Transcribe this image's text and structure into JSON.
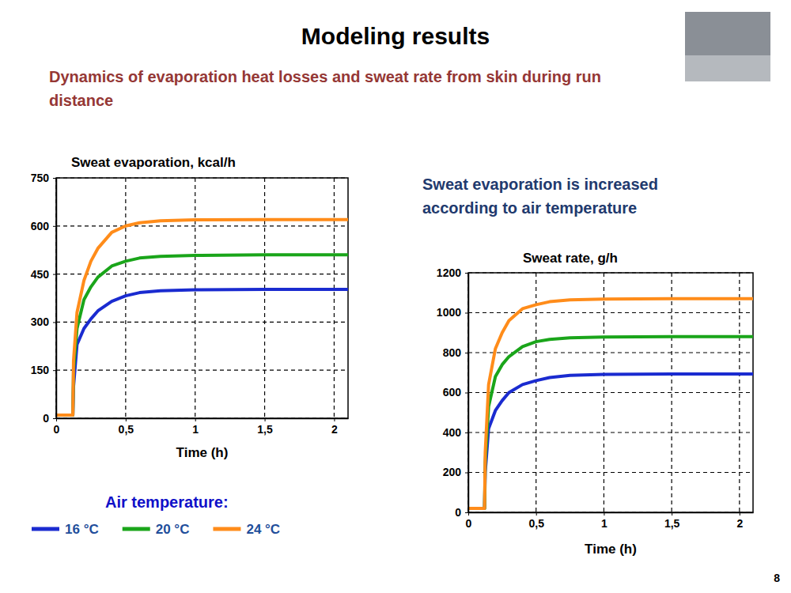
{
  "page": {
    "title": "Modeling results",
    "subtitle": "Dynamics of evaporation heat losses and sweat rate from skin during run distance",
    "note": "Sweat evaporation is increased according to air temperature",
    "page_number": 8
  },
  "chart_data": [
    {
      "type": "line",
      "title": "Sweat evaporation, kcal/h",
      "x_label": "Time (h)",
      "x": [
        0,
        0.12,
        0.125,
        0.15,
        0.2,
        0.25,
        0.3,
        0.4,
        0.5,
        0.6,
        0.75,
        1,
        1.5,
        2.1
      ],
      "series": [
        {
          "name": "16 °C",
          "color": "#1a2bd0",
          "values": [
            10,
            10,
            100,
            230,
            280,
            310,
            335,
            365,
            382,
            392,
            398,
            401,
            402,
            402
          ]
        },
        {
          "name": "20 °C",
          "color": "#1aa51a",
          "values": [
            10,
            10,
            150,
            280,
            370,
            410,
            440,
            475,
            490,
            500,
            505,
            508,
            510,
            510
          ]
        },
        {
          "name": "24 °C",
          "color": "#ff8c1a",
          "values": [
            10,
            10,
            180,
            330,
            430,
            490,
            530,
            580,
            600,
            610,
            616,
            619,
            620,
            620
          ]
        }
      ],
      "xlim": [
        0,
        2.1
      ],
      "xticks": [
        0,
        {
          "value": 0.5,
          "label": "0,5"
        },
        1,
        {
          "value": 1.5,
          "label": "1,5"
        },
        2
      ],
      "ylim": [
        0,
        750
      ],
      "yticks": [
        0,
        150,
        300,
        450,
        600,
        750
      ],
      "grid": true,
      "legend": "bottom",
      "legend_title": "Air temperature:"
    },
    {
      "type": "line",
      "title": "Sweat rate, g/h",
      "x_label": "Time (h)",
      "x": [
        0,
        0.12,
        0.125,
        0.15,
        0.2,
        0.25,
        0.3,
        0.4,
        0.5,
        0.6,
        0.75,
        1,
        1.5,
        2.1
      ],
      "series": [
        {
          "color": "#1a2bd0",
          "values": [
            20,
            20,
            200,
            420,
            510,
            560,
            600,
            640,
            660,
            675,
            686,
            691,
            693,
            693
          ]
        },
        {
          "color": "#1aa51a",
          "values": [
            20,
            20,
            250,
            530,
            680,
            740,
            780,
            830,
            855,
            866,
            874,
            878,
            880,
            880
          ]
        },
        {
          "color": "#ff8c1a",
          "values": [
            20,
            20,
            300,
            640,
            820,
            900,
            960,
            1020,
            1040,
            1055,
            1064,
            1068,
            1070,
            1070
          ]
        }
      ],
      "xlim": [
        0,
        2.1
      ],
      "xticks": [
        0,
        {
          "value": 0.5,
          "label": "0,5"
        },
        1,
        {
          "value": 1.5,
          "label": "1,5"
        },
        2
      ],
      "ylim": [
        0,
        1200
      ],
      "yticks": [
        0,
        200,
        400,
        600,
        800,
        1000,
        1200
      ],
      "grid": true
    }
  ]
}
